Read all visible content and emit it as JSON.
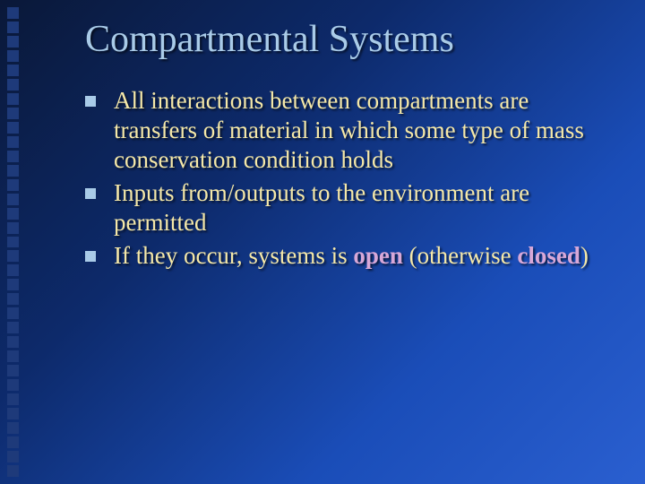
{
  "slide": {
    "title": "Compartmental Systems",
    "title_color": "#a9cbe8",
    "title_fontsize": 42,
    "body_color": "#f5e8a8",
    "body_fontsize": 27,
    "emphasis_color": "#d8a8d8",
    "background_gradient": [
      "#0a1838",
      "#0d2a6b",
      "#1a4db8",
      "#2a5fd0"
    ],
    "bullet_square_color": "#a9cbe8",
    "bullet_square_size": 12,
    "left_decor": {
      "square_color": "#1e3a7a",
      "square_size": 13,
      "count": 33
    },
    "bullets": [
      {
        "runs": [
          {
            "text": "All interactions between compartments are transfers of material in which some type of mass conservation condition holds",
            "emph": false
          }
        ]
      },
      {
        "runs": [
          {
            "text": "Inputs from/outputs to the environment are permitted",
            "emph": false
          }
        ]
      },
      {
        "runs": [
          {
            "text": "If they occur, systems is ",
            "emph": false
          },
          {
            "text": "open",
            "emph": true
          },
          {
            "text": " (otherwise ",
            "emph": false
          },
          {
            "text": "closed",
            "emph": true
          },
          {
            "text": ")",
            "emph": false
          }
        ]
      }
    ]
  }
}
